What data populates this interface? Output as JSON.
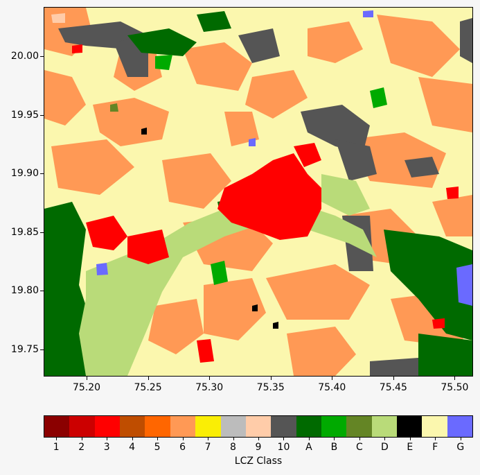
{
  "map": {
    "x_ticks": [
      "75.20",
      "75.25",
      "75.30",
      "75.35",
      "75.40",
      "75.45",
      "75.50"
    ],
    "y_ticks": [
      "20.00",
      "19.95",
      "19.90",
      "19.85",
      "19.80",
      "19.75"
    ],
    "lon_range": [
      75.165,
      75.515
    ],
    "lat_range": [
      19.727,
      20.042
    ],
    "x_tick_values": [
      75.2,
      75.25,
      75.3,
      75.35,
      75.4,
      75.45,
      75.5
    ],
    "y_tick_values": [
      20.0,
      19.95,
      19.9,
      19.85,
      19.8,
      19.75
    ]
  },
  "legend": {
    "title": "LCZ Class",
    "classes": [
      {
        "label": "1",
        "color": "#8b0000"
      },
      {
        "label": "2",
        "color": "#cc0000"
      },
      {
        "label": "3",
        "color": "#ff0000"
      },
      {
        "label": "4",
        "color": "#bf4d00"
      },
      {
        "label": "5",
        "color": "#ff6600"
      },
      {
        "label": "6",
        "color": "#ff9955"
      },
      {
        "label": "7",
        "color": "#faee05"
      },
      {
        "label": "8",
        "color": "#bcbcbc"
      },
      {
        "label": "9",
        "color": "#ffcca9"
      },
      {
        "label": "10",
        "color": "#555555"
      },
      {
        "label": "A",
        "color": "#006a00"
      },
      {
        "label": "B",
        "color": "#00aa00"
      },
      {
        "label": "C",
        "color": "#648525"
      },
      {
        "label": "D",
        "color": "#b9db79"
      },
      {
        "label": "E",
        "color": "#000000"
      },
      {
        "label": "F",
        "color": "#fbf7ae"
      },
      {
        "label": "G",
        "color": "#6a6aff"
      }
    ]
  }
}
